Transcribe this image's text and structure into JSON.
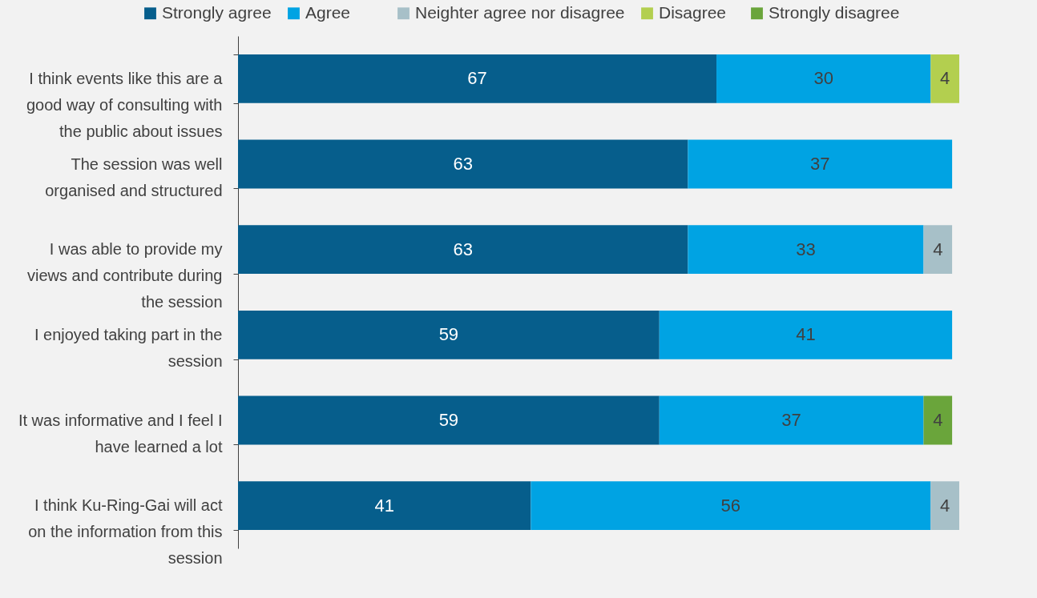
{
  "chart_data": {
    "type": "bar",
    "orientation": "horizontal",
    "stacked": true,
    "tick_labels": "y",
    "data_labels": true,
    "legend": "top",
    "grid": false,
    "categories": [
      "I think events like this are a good way of consulting with the public about issues",
      "The session was well organised and structured",
      "I was able to provide my views and contribute during the session",
      "I enjoyed taking part in the session",
      "It was informative and I feel I have learned a lot",
      "I think Ku-Ring-Gai will act on the information from this session"
    ],
    "series": [
      {
        "name": "Strongly agree",
        "color": "#065e8c",
        "values": [
          67,
          63,
          63,
          59,
          59,
          41
        ]
      },
      {
        "name": "Agree",
        "color": "#00a3e3",
        "values": [
          30,
          37,
          33,
          41,
          37,
          56
        ]
      },
      {
        "name": "Neighter agree nor disagree",
        "color": "#a7c0c8",
        "values": [
          null,
          null,
          4,
          null,
          null,
          4
        ]
      },
      {
        "name": "Disagree",
        "color": "#b3cf4f",
        "values": [
          4,
          null,
          null,
          null,
          null,
          null
        ]
      },
      {
        "name": "Strongly disagree",
        "color": "#6aa53b",
        "values": [
          null,
          null,
          null,
          null,
          4,
          null
        ]
      }
    ]
  }
}
